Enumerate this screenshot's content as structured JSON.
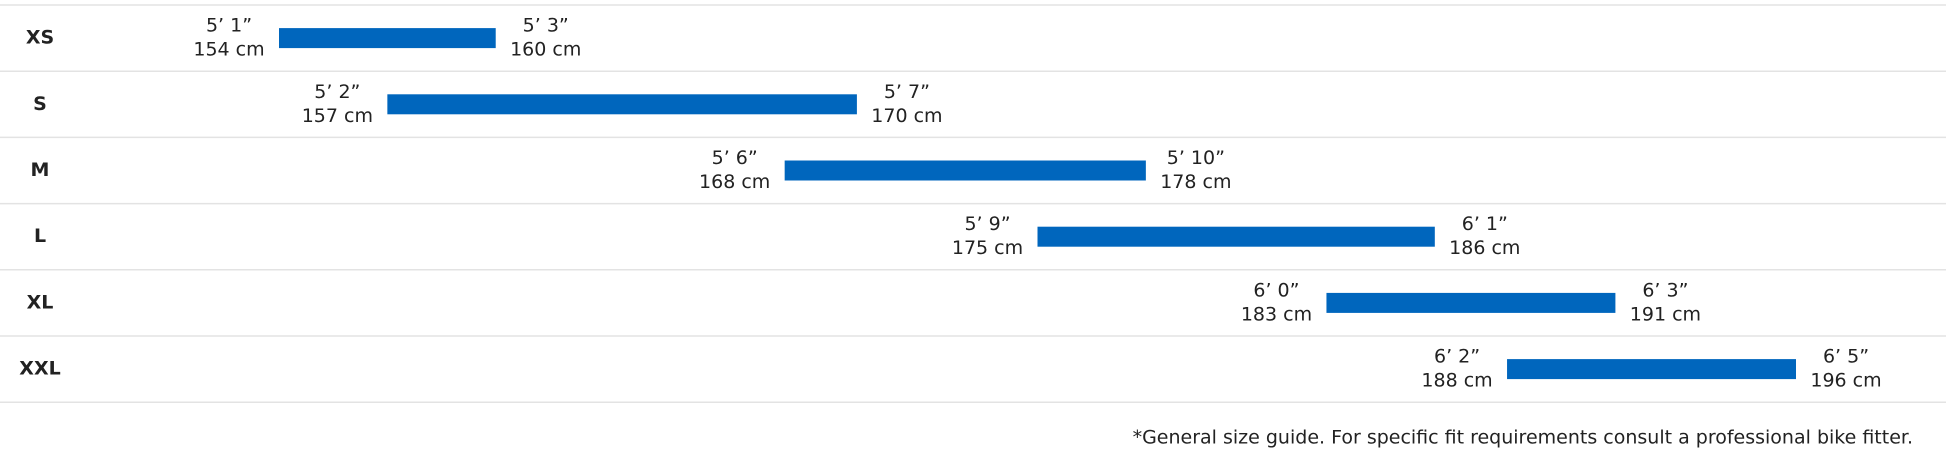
{
  "chart_data": {
    "type": "range-bar",
    "categories": [
      "XS",
      "S",
      "M",
      "L",
      "XL",
      "XXL"
    ],
    "low": [
      154,
      157,
      168,
      175,
      183,
      188
    ],
    "high": [
      160,
      170,
      178,
      186,
      191,
      196
    ],
    "low_value_labels": [
      "154 cm",
      "157 cm",
      "168 cm",
      "175 cm",
      "183 cm",
      "188 cm"
    ],
    "high_value_labels": [
      "160 cm",
      "170 cm",
      "178 cm",
      "186 cm",
      "191 cm",
      "196 cm"
    ],
    "low_imperial": [
      "5’ 1”",
      "5’ 2”",
      "5’ 6”",
      "5’ 9”",
      "6’ 0”",
      "6’ 2”"
    ],
    "high_imperial": [
      "5’ 3”",
      "5’ 7”",
      "5’ 10”",
      "6’ 1”",
      "6’ 3”",
      "6’ 5”"
    ],
    "color": "#0066bd",
    "note": "*General size guide. For specific fit requirements consult a professional bike fitter."
  }
}
